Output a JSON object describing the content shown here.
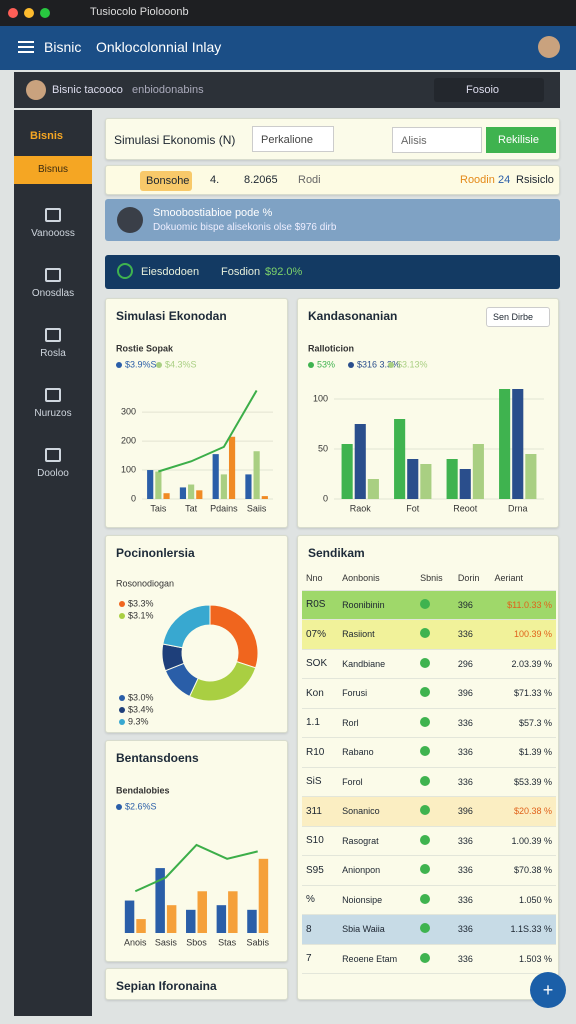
{
  "browser": {
    "tab": "Tusiocolo Piolooonb"
  },
  "header": {
    "brand": "Bisnic",
    "title": "Onklocolonnial Inlay"
  },
  "subbar": {
    "user": "Bisnic tacooco",
    "text": "enbiodonabins",
    "right": "Fosoio"
  },
  "sidebar": {
    "brand": "Bisnis",
    "items": [
      "Bisnus",
      "Vanoooss",
      "Onosdlas",
      "Rosla",
      "Nuruzos",
      "Dooloo"
    ]
  },
  "toolbar": {
    "title": "Simulasi Ekonomis (N)",
    "dropdown": "Perkalione",
    "input": "Alisis",
    "button": "Rekilisie"
  },
  "info": {
    "tag": "Bonsohe",
    "count": "4.",
    "value": "8.2065",
    "label": "Rodi",
    "status": "Roodin",
    "num": "24",
    "link": "Rsisiclo"
  },
  "banner": {
    "title": "Smoobostiabioe pode %",
    "text": "Dokuomic bispe alisekonis olse $976 dirb"
  },
  "strip": {
    "label": "Eiesdodoen",
    "key": "Fosdion",
    "value": "$92.0%"
  },
  "charts": [
    {
      "type": "bar",
      "title": "Simulasi Ekonodan",
      "subtitle": "Rostie Sopak",
      "categories": [
        "Tais",
        "Tat",
        "Pdains",
        "Saiis"
      ],
      "series": [
        {
          "name": "$3.9%S",
          "color": "#2a5ea8",
          "values": [
            100,
            40,
            155,
            85
          ]
        },
        {
          "name": "$4.3%S",
          "color": "#a9cf82",
          "values": [
            95,
            50,
            85,
            165
          ]
        },
        {
          "color": "#f08a24",
          "values": [
            20,
            30,
            215,
            10
          ]
        }
      ],
      "line": {
        "color": "#3cae49",
        "values": [
          95,
          130,
          180,
          375
        ]
      },
      "ylim": [
        0,
        380
      ],
      "yticks": [
        0,
        100,
        200,
        300
      ]
    },
    {
      "type": "bar",
      "title": "Kandasonanian",
      "subtitle": "Ralloticion",
      "button": "Sen Dirbe",
      "categories": [
        "Raok",
        "Fot",
        "Reoot",
        "Drna"
      ],
      "series": [
        {
          "name": "53%",
          "color": "#3fb34f",
          "values": [
            55,
            80,
            40,
            110
          ]
        },
        {
          "name": "$316 3.3%",
          "color": "#2a4e8c",
          "values": [
            75,
            40,
            30,
            110
          ]
        },
        {
          "name": "$3.13%",
          "color": "#a9cf82",
          "values": [
            20,
            35,
            55,
            45
          ]
        }
      ],
      "ylim": [
        0,
        110
      ],
      "yticks": [
        0,
        50,
        100
      ]
    },
    {
      "type": "bar",
      "title": "Bentansdoens",
      "subtitle": "Bendalobies",
      "categories": [
        "Anois",
        "Sasis",
        "Sbos",
        "Stas",
        "Sabis"
      ],
      "series": [
        {
          "name": "$2.6%S",
          "color": "#2a5ea8",
          "values": [
            35,
            70,
            25,
            30,
            25
          ]
        },
        {
          "color": "#f5a03a",
          "values": [
            15,
            30,
            45,
            45,
            80
          ]
        }
      ],
      "line": {
        "color": "#3cae49",
        "values": [
          45,
          60,
          95,
          80,
          88
        ]
      },
      "ylim": [
        0,
        110
      ]
    }
  ],
  "donut": {
    "type": "pie",
    "title": "Pocinonlersia",
    "subtitle": "Rosonodiogan",
    "segments": [
      {
        "name": "$3.3%",
        "value": 30,
        "color": "#f0651e"
      },
      {
        "name": "$3.1%",
        "value": 27,
        "color": "#a9cf42"
      },
      {
        "name": "$3.0%",
        "value": 12,
        "color": "#2a5ea8"
      },
      {
        "name": "$3.4%",
        "value": 9,
        "color": "#1e3f7a"
      },
      {
        "name": "9.3%",
        "value": 22,
        "color": "#38a8d0"
      }
    ]
  },
  "table": {
    "title": "Sendikam",
    "columns": [
      "Nno",
      "Aonbonis",
      "Sbnis",
      "Dorin",
      "Aeriant"
    ],
    "rows": [
      [
        "R0S",
        "Roonibinin",
        "396",
        "$11.0.33 %"
      ],
      [
        "07%",
        "Rasiiont",
        "336",
        "100.39 %"
      ],
      [
        "SOK",
        "Kandbiane",
        "296",
        "2.03.39 %"
      ],
      [
        "Kon",
        "Forusi",
        "396",
        "$71.33 %"
      ],
      [
        "1.1",
        "Rorl",
        "336",
        "$57.3 %"
      ],
      [
        "R10",
        "Rabano",
        "336",
        "$1.39 %"
      ],
      [
        "SiS",
        "Forol",
        "336",
        "$53.39 %"
      ],
      [
        "311",
        "Sonanico",
        "396",
        "$20.38 %"
      ],
      [
        "S10",
        "Rasograt",
        "336",
        "1.00.39 %"
      ],
      [
        "S95",
        "Anionpon",
        "336",
        "$70.38 %"
      ],
      [
        "%",
        "Noionsipe",
        "336",
        "1.050 %"
      ],
      [
        "8",
        "Sbia Waiia",
        "336",
        "1.1S.33 %"
      ],
      [
        "7",
        "Reoene Etam",
        "336",
        "1.503 %"
      ]
    ]
  },
  "footer_card": {
    "title": "Sepian Iforonaina"
  }
}
